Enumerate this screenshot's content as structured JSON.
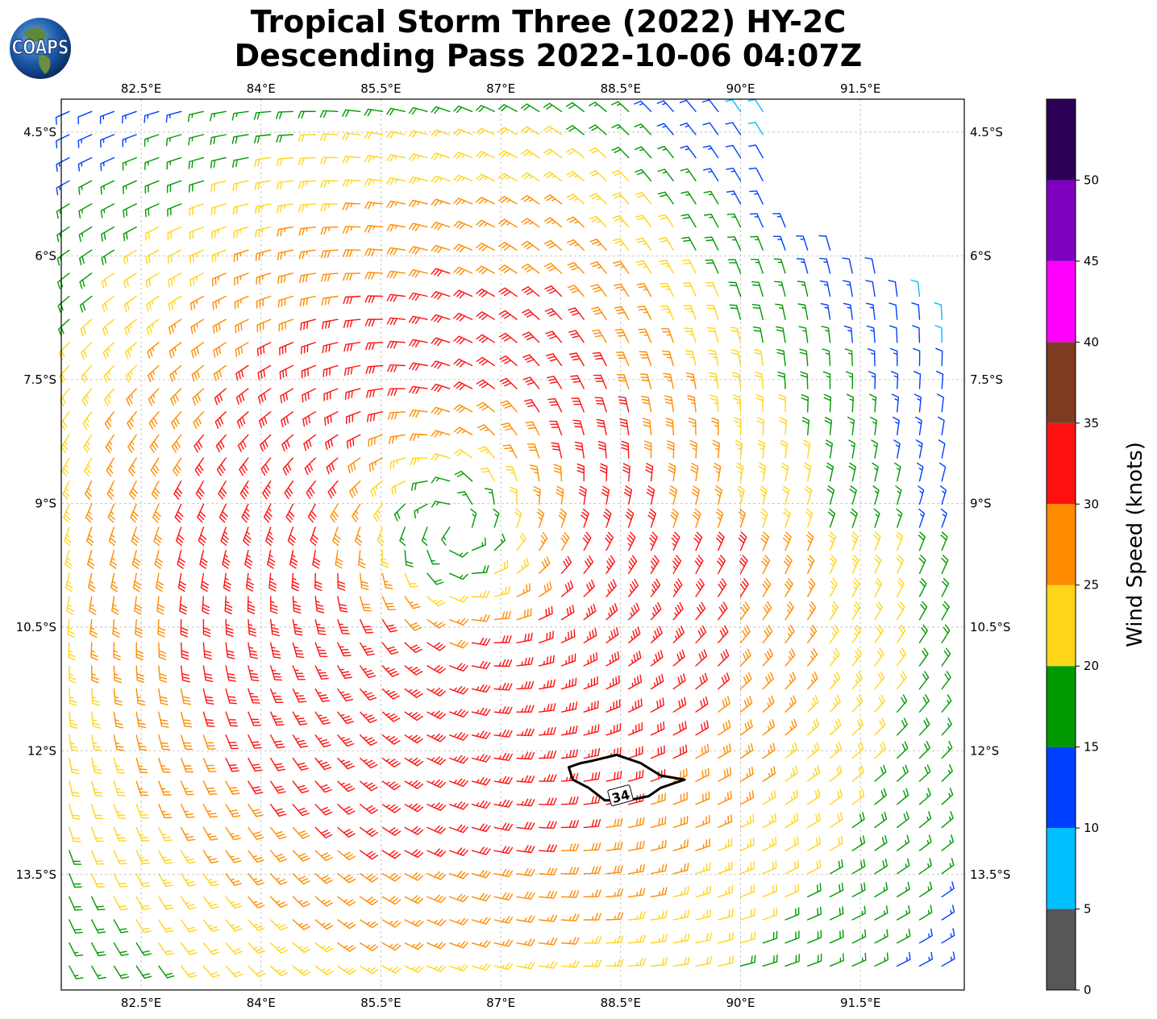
{
  "title_line1": "Tropical Storm Three (2022) HY-2C",
  "title_line2": "Descending Pass 2022-10-06 04:07Z",
  "logo_text": "COAPS",
  "map": {
    "lon_range": [
      81.5,
      92.8
    ],
    "lat_range": [
      -14.9,
      -4.1
    ],
    "lon_ticks": [
      "82.5°E",
      "84°E",
      "85.5°E",
      "87°E",
      "88.5°E",
      "90°E",
      "91.5°E"
    ],
    "lon_values": [
      82.5,
      84,
      85.5,
      87,
      88.5,
      90,
      91.5
    ],
    "lat_ticks": [
      "4.5°S",
      "6°S",
      "7.5°S",
      "9°S",
      "10.5°S",
      "12°S",
      "13.5°S"
    ],
    "lat_values": [
      -4.5,
      -6,
      -7.5,
      -9,
      -10.5,
      -12,
      -13.5
    ],
    "gridlines": true,
    "storm_center": {
      "lon": 86.4,
      "lat": -9.3
    },
    "contour_label": "34"
  },
  "colorbar": {
    "label": "Wind Speed (knots)",
    "tick_labels": [
      "0",
      "5",
      "10",
      "15",
      "20",
      "25",
      "30",
      "35",
      "40",
      "45",
      "50"
    ],
    "bins": [
      {
        "min": 0,
        "max": 5,
        "color": "#575757"
      },
      {
        "min": 5,
        "max": 10,
        "color": "#00bfff"
      },
      {
        "min": 10,
        "max": 15,
        "color": "#0040ff"
      },
      {
        "min": 15,
        "max": 20,
        "color": "#009900"
      },
      {
        "min": 20,
        "max": 25,
        "color": "#ffd51a"
      },
      {
        "min": 25,
        "max": 30,
        "color": "#ff8c00"
      },
      {
        "min": 30,
        "max": 35,
        "color": "#ff1010"
      },
      {
        "min": 35,
        "max": 40,
        "color": "#7e3b22"
      },
      {
        "min": 40,
        "max": 45,
        "color": "#ff00ff"
      },
      {
        "min": 45,
        "max": 50,
        "color": "#8000c0"
      },
      {
        "min": 50,
        "max": 55,
        "color": "#2b0054"
      }
    ]
  }
}
